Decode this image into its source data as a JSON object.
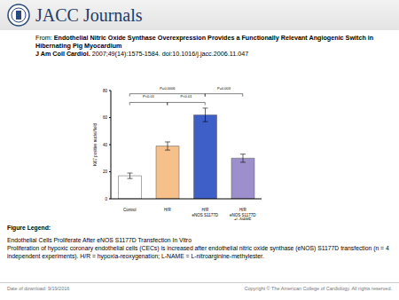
{
  "header": {
    "brand": "JACC Journals",
    "from_label": "From:",
    "title": "Endothelial Nitric Oxide Synthase Overexpression Provides a Functionally Relevant Angiogenic Switch in Hibernating Pig Myocardium",
    "citation_journal": "J Am Coll Cardiol.",
    "citation": "2007;49(14):1575-1584. doi:10.1016/j.jacc.2006.11.047"
  },
  "chart_data": {
    "type": "bar",
    "y_label": "Ki67 positive nuclei/field",
    "categories": [
      "Control",
      "H/R",
      "H/R\neNOS S1177D",
      "H/R\neNOS S1177D\n+L-NAME"
    ],
    "values": [
      17,
      39,
      62,
      30
    ],
    "errors": [
      2,
      3,
      5,
      3
    ],
    "colors": [
      "#ffffff",
      "#f6c08a",
      "#3f5fc8",
      "#9d8fcb"
    ],
    "ylim": [
      0,
      80
    ],
    "yticks": [
      0,
      20,
      40,
      60,
      80
    ],
    "annotations": [
      {
        "text": "P=0.0006",
        "from": 0,
        "to": 2
      },
      {
        "text": "P<0.01",
        "from": 0,
        "to": 1
      },
      {
        "text": "P<0.01",
        "from": 1,
        "to": 2
      },
      {
        "text": "P=0.003",
        "from": 2,
        "to": 3
      }
    ]
  },
  "figure_legend": {
    "heading": "Figure Legend:",
    "title": "Endothelial Cells Proliferate After eNOS S1177D Transfection In Vitro",
    "text": "Proliferation of hypoxic coronary endothelial cells (CECs) is increased after endothelial nitric oxide synthase (eNOS) S1177D transfection (n = 4 independent experiments). H/R = hypoxia-reoxygenation; L-NAME = L-nitroarginine-methylester."
  },
  "footer": {
    "date_label": "Date of download:",
    "date": "9/19/2016",
    "copyright": "Copyright © The American College of Cardiology. All rights reserved."
  }
}
